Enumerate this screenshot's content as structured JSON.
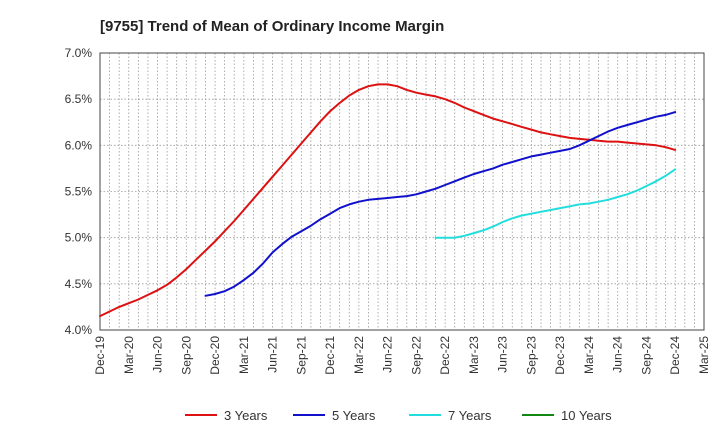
{
  "chart_data": {
    "type": "line",
    "title": "[9755]  Trend of Mean of Ordinary Income Margin",
    "xlabel": "",
    "ylabel": "",
    "ylim": [
      4.0,
      7.0
    ],
    "y_ticks": [
      "4.0%",
      "4.5%",
      "5.0%",
      "5.5%",
      "6.0%",
      "6.5%",
      "7.0%"
    ],
    "y_tick_values": [
      4.0,
      4.5,
      5.0,
      5.5,
      6.0,
      6.5,
      7.0
    ],
    "x_ticks": [
      "Dec-19",
      "Mar-20",
      "Jun-20",
      "Sep-20",
      "Dec-20",
      "Mar-21",
      "Jun-21",
      "Sep-21",
      "Dec-21",
      "Mar-22",
      "Jun-22",
      "Sep-22",
      "Dec-22",
      "Mar-23",
      "Jun-23",
      "Sep-23",
      "Dec-23",
      "Mar-24",
      "Jun-24",
      "Sep-24",
      "Dec-24",
      "Mar-25"
    ],
    "grid": true,
    "legend_position": "bottom",
    "series": [
      {
        "name": "3 Years",
        "color": "#dd1111",
        "x": [
          "Dec-19",
          "Jan-20",
          "Feb-20",
          "Mar-20",
          "Apr-20",
          "May-20",
          "Jun-20",
          "Jul-20",
          "Aug-20",
          "Sep-20",
          "Oct-20",
          "Nov-20",
          "Dec-20",
          "Jan-21",
          "Feb-21",
          "Mar-21",
          "Apr-21",
          "May-21",
          "Jun-21",
          "Jul-21",
          "Aug-21",
          "Sep-21",
          "Oct-21",
          "Nov-21",
          "Dec-21",
          "Jan-22",
          "Feb-22",
          "Mar-22",
          "Apr-22",
          "May-22",
          "Jun-22",
          "Jul-22",
          "Aug-22",
          "Sep-22",
          "Oct-22",
          "Nov-22",
          "Dec-22",
          "Jan-23",
          "Feb-23",
          "Mar-23",
          "Apr-23",
          "May-23",
          "Jun-23",
          "Jul-23",
          "Aug-23",
          "Sep-23",
          "Oct-23",
          "Nov-23",
          "Dec-23",
          "Jan-24",
          "Feb-24",
          "Mar-24",
          "Apr-24",
          "May-24",
          "Jun-24",
          "Jul-24",
          "Aug-24",
          "Sep-24",
          "Oct-24",
          "Nov-24",
          "Dec-24"
        ],
        "values": [
          4.15,
          4.2,
          4.25,
          4.29,
          4.33,
          4.38,
          4.43,
          4.49,
          4.57,
          4.66,
          4.76,
          4.86,
          4.96,
          5.07,
          5.18,
          5.3,
          5.42,
          5.54,
          5.66,
          5.78,
          5.9,
          6.02,
          6.14,
          6.26,
          6.37,
          6.46,
          6.54,
          6.6,
          6.64,
          6.66,
          6.66,
          6.64,
          6.6,
          6.57,
          6.55,
          6.53,
          6.5,
          6.46,
          6.41,
          6.37,
          6.33,
          6.29,
          6.26,
          6.23,
          6.2,
          6.17,
          6.14,
          6.12,
          6.1,
          6.08,
          6.07,
          6.06,
          6.05,
          6.04,
          6.04,
          6.03,
          6.02,
          6.01,
          6.0,
          5.98,
          5.95
        ]
      },
      {
        "name": "5 Years",
        "color": "#1111cc",
        "x": [
          "Nov-20",
          "Dec-20",
          "Jan-21",
          "Feb-21",
          "Mar-21",
          "Apr-21",
          "May-21",
          "Jun-21",
          "Jul-21",
          "Aug-21",
          "Sep-21",
          "Oct-21",
          "Nov-21",
          "Dec-21",
          "Jan-22",
          "Feb-22",
          "Mar-22",
          "Apr-22",
          "May-22",
          "Jun-22",
          "Jul-22",
          "Aug-22",
          "Sep-22",
          "Oct-22",
          "Nov-22",
          "Dec-22",
          "Jan-23",
          "Feb-23",
          "Mar-23",
          "Apr-23",
          "May-23",
          "Jun-23",
          "Jul-23",
          "Aug-23",
          "Sep-23",
          "Oct-23",
          "Nov-23",
          "Dec-23",
          "Jan-24",
          "Feb-24",
          "Mar-24",
          "Apr-24",
          "May-24",
          "Jun-24",
          "Jul-24",
          "Aug-24",
          "Sep-24",
          "Oct-24",
          "Nov-24",
          "Dec-24"
        ],
        "values": [
          4.37,
          4.39,
          4.42,
          4.47,
          4.54,
          4.62,
          4.72,
          4.84,
          4.93,
          5.01,
          5.07,
          5.13,
          5.2,
          5.26,
          5.32,
          5.36,
          5.39,
          5.41,
          5.42,
          5.43,
          5.44,
          5.45,
          5.47,
          5.5,
          5.53,
          5.57,
          5.61,
          5.65,
          5.69,
          5.72,
          5.75,
          5.79,
          5.82,
          5.85,
          5.88,
          5.9,
          5.92,
          5.94,
          5.96,
          6.0,
          6.05,
          6.1,
          6.15,
          6.19,
          6.22,
          6.25,
          6.28,
          6.31,
          6.33,
          6.36
        ]
      },
      {
        "name": "7 Years",
        "color": "#22dddd",
        "x": [
          "Nov-22",
          "Dec-22",
          "Jan-23",
          "Feb-23",
          "Mar-23",
          "Apr-23",
          "May-23",
          "Jun-23",
          "Jul-23",
          "Aug-23",
          "Sep-23",
          "Oct-23",
          "Nov-23",
          "Dec-23",
          "Jan-24",
          "Feb-24",
          "Mar-24",
          "Apr-24",
          "May-24",
          "Jun-24",
          "Jul-24",
          "Aug-24",
          "Sep-24",
          "Oct-24",
          "Nov-24",
          "Dec-24"
        ],
        "values": [
          5.0,
          5.0,
          5.0,
          5.02,
          5.05,
          5.08,
          5.12,
          5.17,
          5.21,
          5.24,
          5.26,
          5.28,
          5.3,
          5.32,
          5.34,
          5.36,
          5.37,
          5.39,
          5.41,
          5.44,
          5.47,
          5.51,
          5.56,
          5.61,
          5.67,
          5.74
        ]
      },
      {
        "name": "10 Years",
        "color": "#118811",
        "x": [],
        "values": []
      }
    ]
  }
}
